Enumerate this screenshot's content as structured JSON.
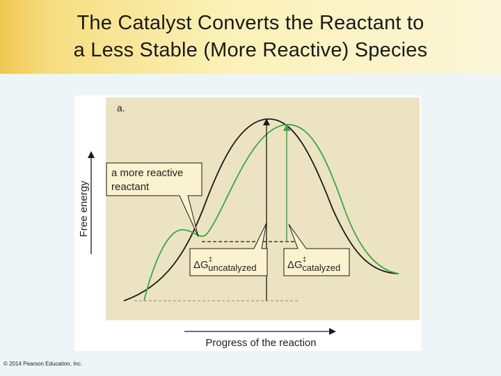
{
  "title": {
    "line1": "The Catalyst Converts the Reactant to",
    "line2": "a Less Stable (More Reactive) Species"
  },
  "figure": {
    "panel_label": "a.",
    "y_axis_label": "Free energy",
    "x_axis_label": "Progress of the reaction",
    "callout_reactant": {
      "line1": "a more reactive",
      "line2": "reactant"
    },
    "callout_uncatalyzed": {
      "symbol": "ΔG",
      "superscript": "‡",
      "subscript": "uncatalyzed"
    },
    "callout_catalyzed": {
      "symbol": "ΔG",
      "superscript": "‡",
      "subscript": "catalyzed"
    },
    "colors": {
      "uncatalyzed_curve": "#1a1a1a",
      "catalyzed_curve": "#3aa646",
      "panel_background": "#ece3c2",
      "callout_background": "#fbf2cf"
    }
  },
  "copyright": "© 2014 Pearson Education, Inc."
}
